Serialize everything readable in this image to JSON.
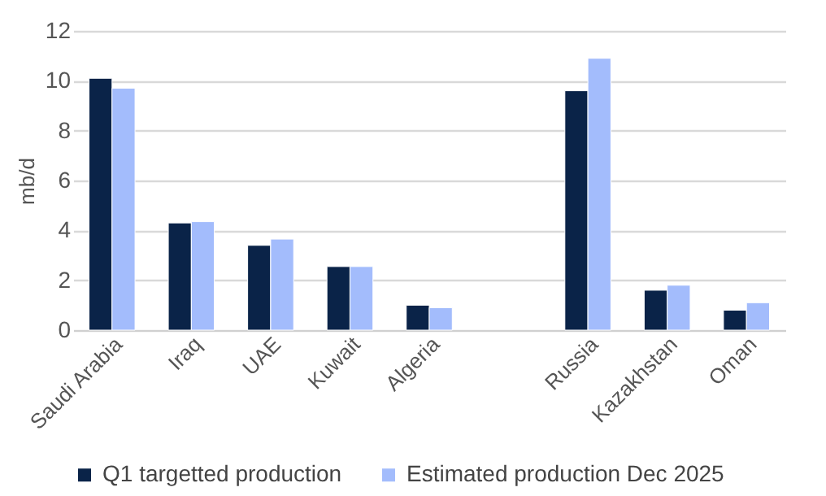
{
  "chart_data": {
    "type": "bar",
    "ylabel": "mb/d",
    "categories": [
      "Saudi Arabia",
      "Iraq",
      "UAE",
      "Kuwait",
      "Algeria",
      null,
      "Russia",
      "Kazakhstan",
      "Oman"
    ],
    "series": [
      {
        "name": "Q1 targetted production",
        "color": "#0a2348",
        "values": [
          10.1,
          4.3,
          3.4,
          2.55,
          1.0,
          null,
          9.6,
          1.6,
          0.8
        ]
      },
      {
        "name": "Estimated production Dec 2025",
        "color": "#a3bcfc",
        "values": [
          9.7,
          4.35,
          3.65,
          2.55,
          0.9,
          null,
          10.9,
          1.8,
          1.1
        ]
      }
    ],
    "ylim": [
      0,
      12
    ],
    "yticks": [
      0,
      2,
      4,
      6,
      8,
      10,
      12
    ],
    "grid": "y",
    "legend": "bottom"
  }
}
